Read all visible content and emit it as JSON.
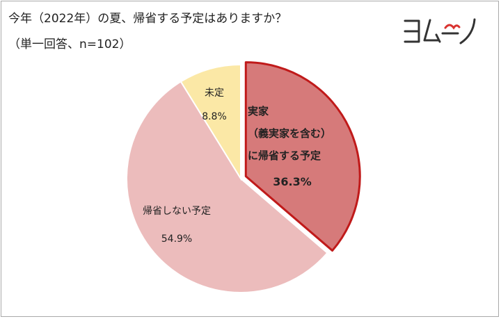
{
  "header": {
    "title": "今年（2022年）の夏、帰省する予定はありますか？",
    "subtitle": "（単一回答、n=102）"
  },
  "logo": {
    "icon": "yomuno-logo",
    "text": "ヨムーノ"
  },
  "colors": {
    "kisei": "#d67a7a",
    "kisei_border": "#c01a1a",
    "shinai": "#ecbcbc",
    "mitei": "#fbe8a6"
  },
  "chart_data": {
    "type": "pie",
    "title": "今年（2022年）の夏、帰省する予定はありますか？",
    "subtitle": "（単一回答、n=102）",
    "slices": [
      {
        "key": "kisei",
        "label_lines": [
          "実家",
          "（義実家を含む）",
          "に帰省する予定"
        ],
        "value": 36.3,
        "value_label": "36.3%",
        "color": "#d67a7a",
        "exploded": true,
        "outline": "#c01a1a"
      },
      {
        "key": "shinai",
        "label_lines": [
          "帰省しない予定"
        ],
        "value": 54.9,
        "value_label": "54.9%",
        "color": "#ecbcbc"
      },
      {
        "key": "mitei",
        "label_lines": [
          "未定"
        ],
        "value": 8.8,
        "value_label": "8.8%",
        "color": "#fbe8a6"
      }
    ]
  }
}
